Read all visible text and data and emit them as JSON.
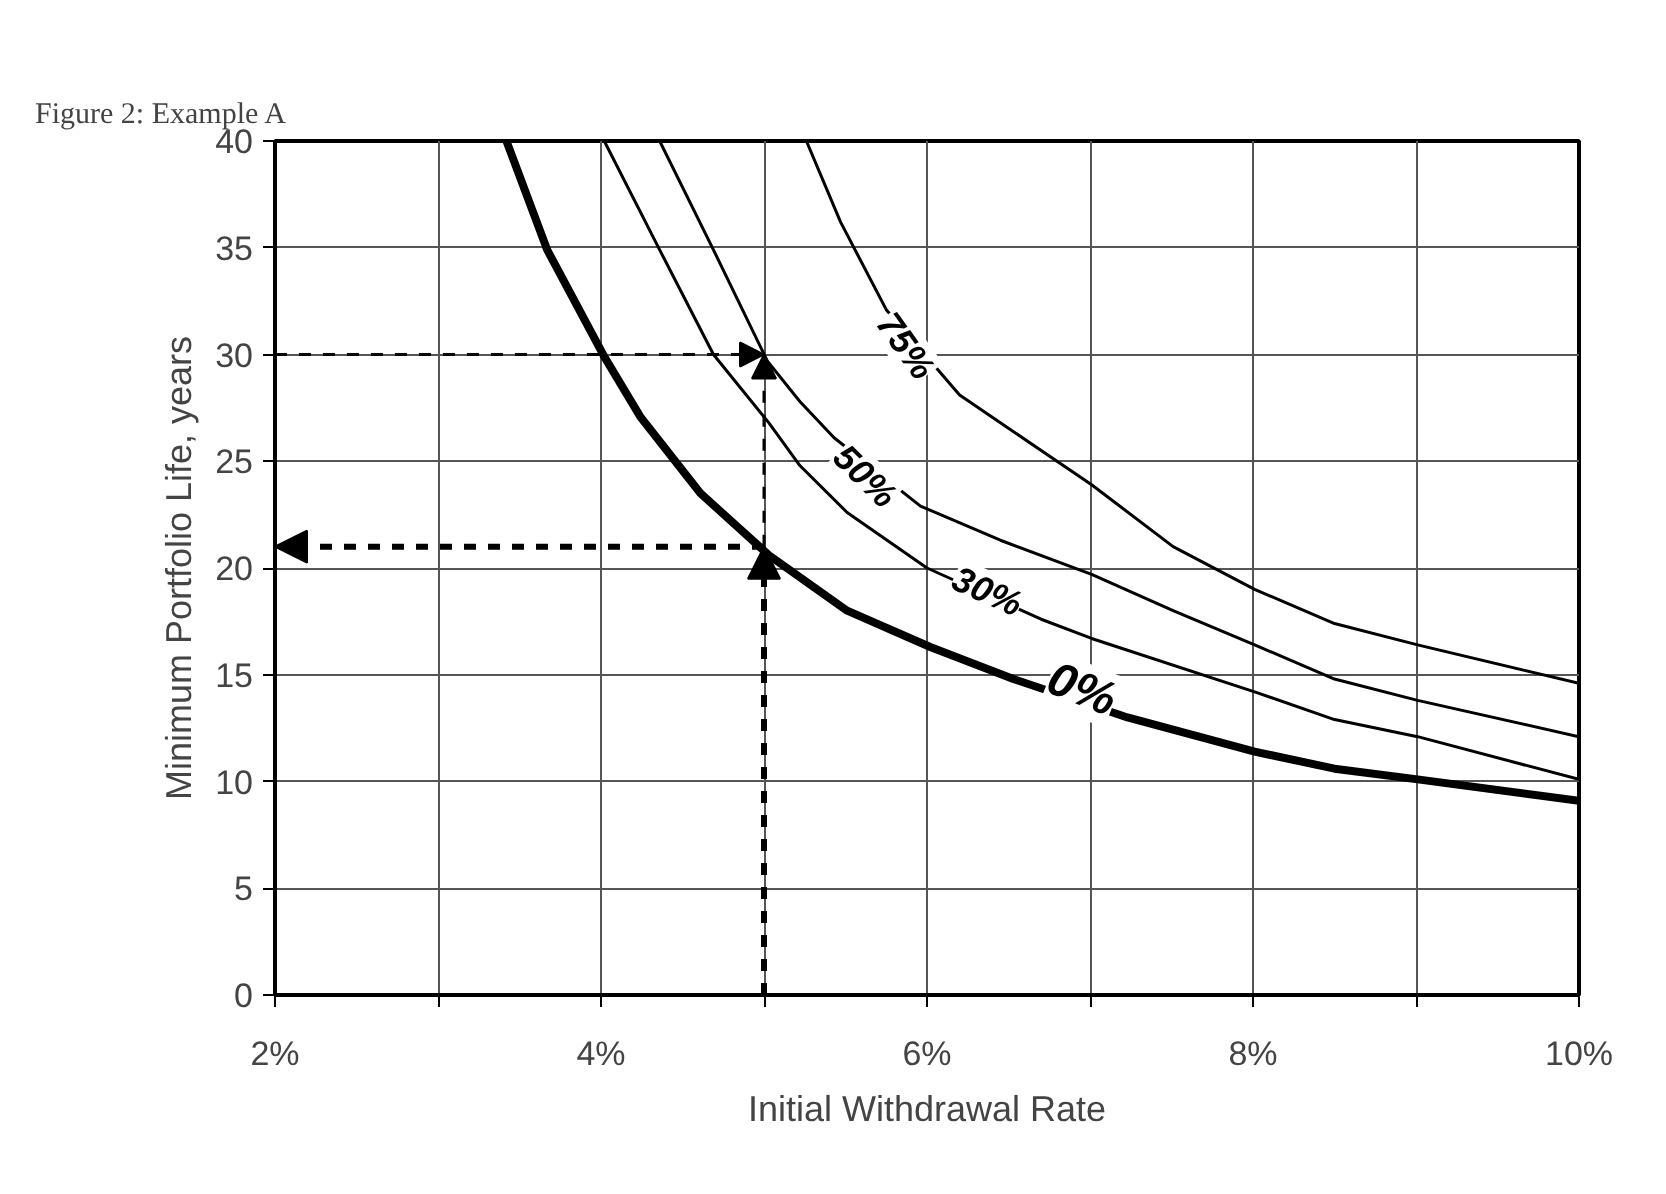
{
  "chart_data": {
    "type": "line",
    "title": "Figure 2: Example A",
    "xlabel": "Initial Withdrawal Rate",
    "ylabel": "Minimum Portfolio Life, years",
    "xlim": [
      2,
      10
    ],
    "ylim": [
      0,
      40
    ],
    "xticks": [
      {
        "value": 2,
        "label": "2%"
      },
      {
        "value": 3,
        "label": null
      },
      {
        "value": 4,
        "label": "4%"
      },
      {
        "value": 5,
        "label": null
      },
      {
        "value": 6,
        "label": "6%"
      },
      {
        "value": 7,
        "label": null
      },
      {
        "value": 8,
        "label": "8%"
      },
      {
        "value": 9,
        "label": null
      },
      {
        "value": 10,
        "label": "10%"
      }
    ],
    "yticks": [
      0,
      5,
      10,
      15,
      20,
      25,
      30,
      35,
      40
    ],
    "grid": true,
    "line_style": "solid",
    "marker": "none",
    "series": [
      {
        "name": "0%",
        "color": "#000000",
        "x": [
          3.42,
          3.67,
          4.02,
          4.24,
          4.61,
          5.03,
          5.51,
          6.02,
          6.53,
          7.23,
          8.01,
          8.5,
          9.01,
          10.0
        ],
        "values": [
          40,
          34.9,
          29.9,
          27.1,
          23.5,
          20.6,
          18.0,
          16.3,
          14.8,
          13.0,
          11.4,
          10.6,
          10.1,
          9.1
        ]
      },
      {
        "name": "30%",
        "color": "#000000",
        "x": [
          4.02,
          4.36,
          4.69,
          5.03,
          5.22,
          5.51,
          6.0,
          6.7,
          7.01,
          8.01,
          8.5,
          9.01,
          10.0
        ],
        "values": [
          40,
          34.9,
          30.0,
          26.8,
          24.8,
          22.6,
          20.0,
          17.6,
          16.7,
          14.2,
          12.9,
          12.1,
          10.1
        ]
      },
      {
        "name": "50%",
        "color": "#000000",
        "x": [
          4.36,
          4.69,
          5.02,
          5.22,
          5.43,
          5.96,
          6.45,
          7.01,
          7.51,
          8.01,
          8.5,
          9.01,
          10.0
        ],
        "values": [
          40,
          34.9,
          29.7,
          27.8,
          26.1,
          22.9,
          21.3,
          19.7,
          18.0,
          16.4,
          14.8,
          13.8,
          12.1
        ]
      },
      {
        "name": "75%",
        "color": "#000000",
        "x": [
          5.26,
          5.47,
          5.75,
          6.2,
          6.45,
          7.01,
          7.51,
          8.01,
          8.5,
          9.01,
          10.0
        ],
        "values": [
          40,
          36.2,
          32.1,
          28.1,
          26.8,
          23.9,
          21.0,
          19.0,
          17.4,
          16.4,
          14.6
        ]
      }
    ]
  }
}
